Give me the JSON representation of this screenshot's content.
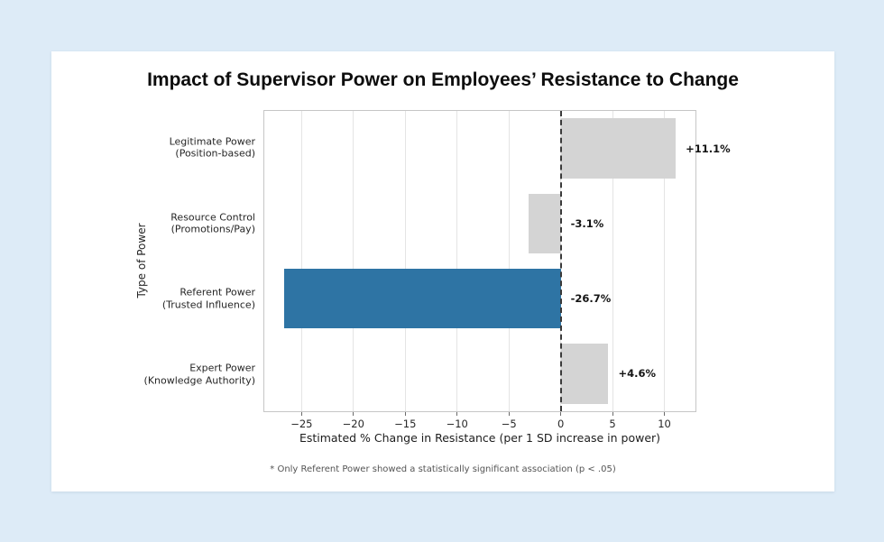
{
  "page": {
    "background_color": "#ddebf7",
    "card_background_color": "#ffffff"
  },
  "chart_data": {
    "type": "bar",
    "orientation": "horizontal",
    "title": "Impact of Supervisor Power on Employees’ Resistance to Change",
    "xlabel": "Estimated % Change in Resistance (per 1 SD increase in power)",
    "ylabel": "Type of Power",
    "footnote": "* Only Referent Power showed a statistically significant association (p < .05)",
    "xlim": [
      -28.6,
      13.0
    ],
    "xticks": [
      -25,
      -20,
      -15,
      -10,
      -5,
      0,
      5,
      10
    ],
    "grid": "vertical",
    "legend": "none",
    "zero_line": {
      "x": 0,
      "style": "dashed",
      "color": "#3a3a3a"
    },
    "categories": [
      {
        "label_lines": [
          "Legitimate Power",
          "(Position-based)"
        ],
        "value": 11.1,
        "value_label": "+11.1%",
        "highlight": false
      },
      {
        "label_lines": [
          "Resource Control",
          "(Promotions/Pay)"
        ],
        "value": -3.1,
        "value_label": "-3.1%",
        "highlight": false
      },
      {
        "label_lines": [
          "Referent Power",
          "(Trusted Influence)"
        ],
        "value": -26.7,
        "value_label": "-26.7%",
        "highlight": true
      },
      {
        "label_lines": [
          "Expert Power",
          "(Knowledge Authority)"
        ],
        "value": 4.6,
        "value_label": "+4.6%",
        "highlight": false
      }
    ],
    "values": [
      11.1,
      -3.1,
      -26.7,
      4.6
    ],
    "colors": {
      "default_bar": "#d4d4d4",
      "highlight_bar": "#2e74a4",
      "gridline": "#e4e4e4",
      "spine": "#c6c6c6",
      "tick_label": "#262626",
      "value_label": "#141414",
      "footnote": "#545454"
    }
  }
}
